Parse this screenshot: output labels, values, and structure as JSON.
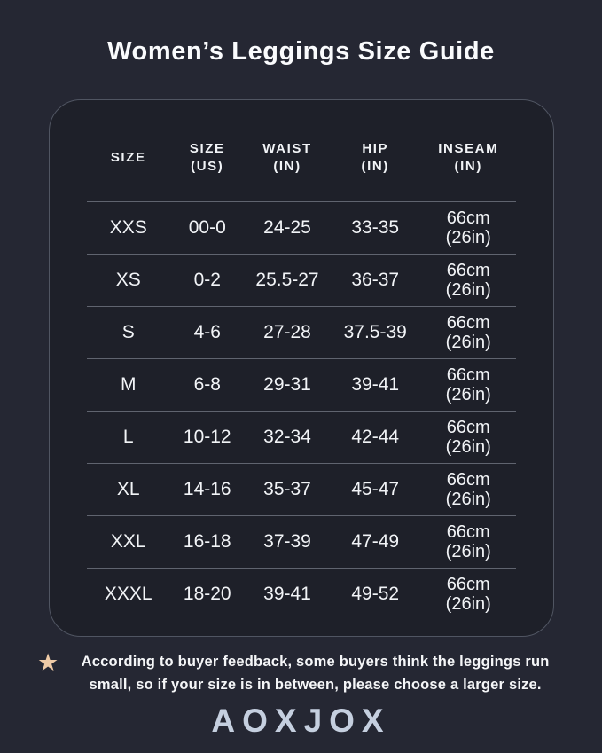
{
  "page": {
    "title": "Women’s Leggings Size Guide",
    "background_color": "#252733",
    "panel_background_color": "#1e2029",
    "panel_border_color": "#505562",
    "text_color": "#f2f4f7",
    "star_color": "#eecaa6",
    "logo_color": "#c5cfdf"
  },
  "table": {
    "headers": [
      {
        "line1": "SIZE",
        "line2": ""
      },
      {
        "line1": "SIZE",
        "line2": "(US)"
      },
      {
        "line1": "WAIST",
        "line2": "(IN)"
      },
      {
        "line1": "HIP",
        "line2": "(IN)"
      },
      {
        "line1": "INSEAM",
        "line2": "(IN)"
      }
    ],
    "rows": [
      {
        "size": "XXS",
        "us": "00-0",
        "waist": "24-25",
        "hip": "33-35",
        "inseam1": "66cm",
        "inseam2": "(26in)"
      },
      {
        "size": "XS",
        "us": "0-2",
        "waist": "25.5-27",
        "hip": "36-37",
        "inseam1": "66cm",
        "inseam2": "(26in)"
      },
      {
        "size": "S",
        "us": "4-6",
        "waist": "27-28",
        "hip": "37.5-39",
        "inseam1": "66cm",
        "inseam2": "(26in)"
      },
      {
        "size": "M",
        "us": "6-8",
        "waist": "29-31",
        "hip": "39-41",
        "inseam1": "66cm",
        "inseam2": "(26in)"
      },
      {
        "size": "L",
        "us": "10-12",
        "waist": "32-34",
        "hip": "42-44",
        "inseam1": "66cm",
        "inseam2": "(26in)"
      },
      {
        "size": "XL",
        "us": "14-16",
        "waist": "35-37",
        "hip": "45-47",
        "inseam1": "66cm",
        "inseam2": "(26in)"
      },
      {
        "size": "XXL",
        "us": "16-18",
        "waist": "37-39",
        "hip": "47-49",
        "inseam1": "66cm",
        "inseam2": "(26in)"
      },
      {
        "size": "XXXL",
        "us": "18-20",
        "waist": "39-41",
        "hip": "49-52",
        "inseam1": "66cm",
        "inseam2": "(26in)"
      }
    ]
  },
  "footnote": {
    "star_icon": "★",
    "text": "According to buyer feedback, some buyers think the leggings run small, so if your size is in between, please choose a larger size."
  },
  "brand": {
    "logo_text": "AOXJOX"
  },
  "chart_data": {
    "type": "table",
    "title": "Women’s Leggings Size Guide",
    "columns": [
      "SIZE",
      "SIZE (US)",
      "WAIST (IN)",
      "HIP (IN)",
      "INSEAM (IN)"
    ],
    "rows": [
      [
        "XXS",
        "00-0",
        "24-25",
        "33-35",
        "66cm (26in)"
      ],
      [
        "XS",
        "0-2",
        "25.5-27",
        "36-37",
        "66cm (26in)"
      ],
      [
        "S",
        "4-6",
        "27-28",
        "37.5-39",
        "66cm (26in)"
      ],
      [
        "M",
        "6-8",
        "29-31",
        "39-41",
        "66cm (26in)"
      ],
      [
        "L",
        "10-12",
        "32-34",
        "42-44",
        "66cm (26in)"
      ],
      [
        "XL",
        "14-16",
        "35-37",
        "45-47",
        "66cm (26in)"
      ],
      [
        "XXL",
        "16-18",
        "37-39",
        "47-49",
        "66cm (26in)"
      ],
      [
        "XXXL",
        "18-20",
        "39-41",
        "49-52",
        "66cm (26in)"
      ]
    ]
  }
}
